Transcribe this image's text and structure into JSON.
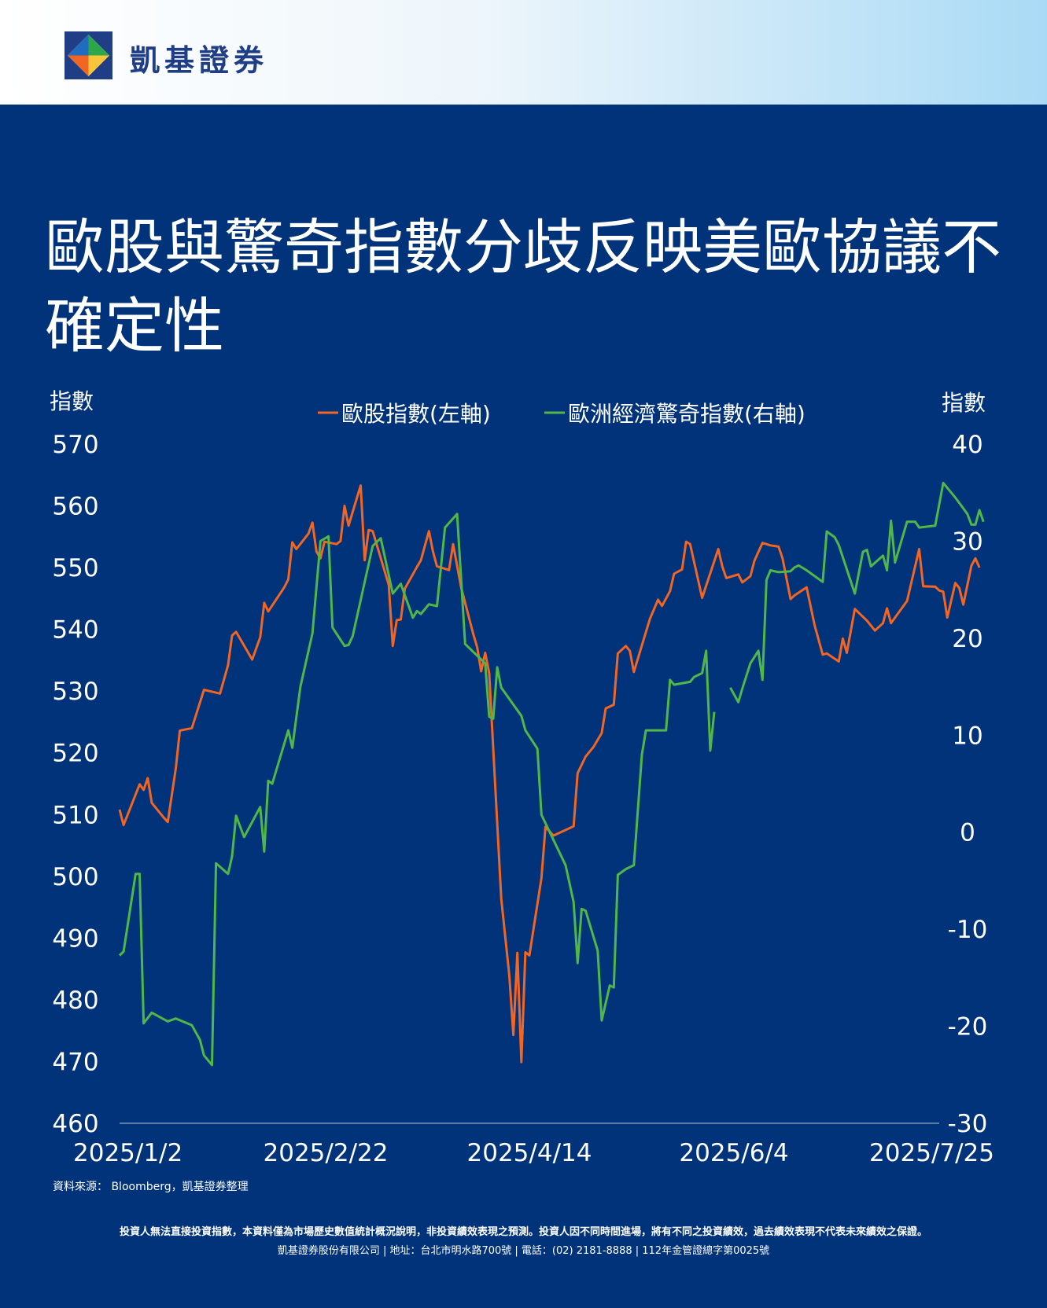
{
  "brand": {
    "name": "凱基證券"
  },
  "title": "歐股與驚奇指數分歧反映美歐協議不確定性",
  "footer": {
    "source": "資料來源： Bloomberg，凱基證券整理",
    "disclaimer": "投資人無法直接投資指數，本資料僅為市場歷史數值統計概況說明，非投資績效表現之預測。投資人因不同時間進場，將有不同之投資績效，過去績效表現不代表未來績效之保證。",
    "company": "凱基證券股份有限公司 | 地址：台北市明水路700號 | 電話：(02) 2181-8888 | 112年金管證總字第0025號"
  },
  "colors": {
    "background": "#00337a",
    "stoxx": "#f26522",
    "surprise": "#4fb848",
    "text": "#ffffff"
  },
  "chart_data": {
    "type": "line",
    "ylabel_left": "指數",
    "ylabel_right": "指數",
    "ylim_left": [
      460,
      570
    ],
    "yticks_left": [
      460,
      470,
      480,
      490,
      500,
      510,
      520,
      530,
      540,
      550,
      560,
      570
    ],
    "ylim_right": [
      -30,
      40
    ],
    "yticks_right": [
      -30,
      -20,
      -10,
      0,
      10,
      20,
      30,
      40
    ],
    "xlim": [
      "2025-01-02",
      "2025-07-25"
    ],
    "xticks": [
      "2025/1/2",
      "2025/2/22",
      "2025/4/14",
      "2025/6/4",
      "2025/7/25"
    ],
    "legend_position": "top-center",
    "grid": false,
    "series": [
      {
        "name": "歐股指數(左軸)",
        "axis": "left",
        "color": "#f26522",
        "points": [
          [
            "2025-01-02",
            510.8
          ],
          [
            "2025-01-03",
            508.3
          ],
          [
            "2025-01-07",
            514.9
          ],
          [
            "2025-01-08",
            514.0
          ],
          [
            "2025-01-09",
            515.9
          ],
          [
            "2025-01-10",
            511.9
          ],
          [
            "2025-01-13",
            509.5
          ],
          [
            "2025-01-14",
            508.8
          ],
          [
            "2025-01-16",
            517.5
          ],
          [
            "2025-01-17",
            523.6
          ],
          [
            "2025-01-20",
            524.0
          ],
          [
            "2025-01-23",
            530.2
          ],
          [
            "2025-01-27",
            529.6
          ],
          [
            "2025-01-29",
            534.2
          ],
          [
            "2025-01-30",
            539.0
          ],
          [
            "2025-01-31",
            539.6
          ],
          [
            "2025-02-04",
            535.1
          ],
          [
            "2025-02-06",
            538.7
          ],
          [
            "2025-02-07",
            544.3
          ],
          [
            "2025-02-08",
            542.9
          ],
          [
            "2025-02-12",
            546.8
          ],
          [
            "2025-02-13",
            548.1
          ],
          [
            "2025-02-14",
            554.1
          ],
          [
            "2025-02-15",
            553.0
          ],
          [
            "2025-02-18",
            555.5
          ],
          [
            "2025-02-19",
            557.3
          ],
          [
            "2025-02-20",
            552.6
          ],
          [
            "2025-02-21",
            551.5
          ],
          [
            "2025-02-22",
            554.2
          ],
          [
            "2025-02-25",
            553.8
          ],
          [
            "2025-02-26",
            554.3
          ],
          [
            "2025-02-27",
            560.0
          ],
          [
            "2025-02-28",
            556.8
          ],
          [
            "2025-03-03",
            563.3
          ],
          [
            "2025-03-04",
            551.2
          ],
          [
            "2025-03-05",
            556.1
          ],
          [
            "2025-03-06",
            555.9
          ],
          [
            "2025-03-10",
            547.2
          ],
          [
            "2025-03-11",
            537.3
          ],
          [
            "2025-03-12",
            541.5
          ],
          [
            "2025-03-13",
            541.6
          ],
          [
            "2025-03-14",
            546.6
          ],
          [
            "2025-03-17",
            550.1
          ],
          [
            "2025-03-18",
            551.2
          ],
          [
            "2025-03-20",
            555.9
          ],
          [
            "2025-03-21",
            552.6
          ],
          [
            "2025-03-22",
            550.2
          ],
          [
            "2025-03-25",
            549.6
          ],
          [
            "2025-03-26",
            553.8
          ],
          [
            "2025-03-28",
            546.8
          ],
          [
            "2025-03-31",
            539.3
          ],
          [
            "2025-04-01",
            537.1
          ],
          [
            "2025-04-02",
            533.2
          ],
          [
            "2025-04-03",
            536.2
          ],
          [
            "2025-04-04",
            532.9
          ],
          [
            "2025-04-07",
            496.4
          ],
          [
            "2025-04-09",
            483.9
          ],
          [
            "2025-04-10",
            474.3
          ],
          [
            "2025-04-11",
            487.6
          ],
          [
            "2025-04-12",
            469.9
          ],
          [
            "2025-04-13",
            487.7
          ],
          [
            "2025-04-14",
            487.2
          ],
          [
            "2025-04-17",
            499.7
          ],
          [
            "2025-04-18",
            508.0
          ],
          [
            "2025-04-20",
            506.6
          ],
          [
            "2025-04-25",
            508.1
          ],
          [
            "2025-04-26",
            516.7
          ],
          [
            "2025-04-28",
            519.4
          ],
          [
            "2025-04-30",
            521.0
          ],
          [
            "2025-05-02",
            523.2
          ],
          [
            "2025-05-03",
            527.2
          ],
          [
            "2025-05-05",
            527.8
          ],
          [
            "2025-05-06",
            536.1
          ],
          [
            "2025-05-08",
            537.3
          ],
          [
            "2025-05-09",
            536.5
          ],
          [
            "2025-05-10",
            533.1
          ],
          [
            "2025-05-14",
            541.7
          ],
          [
            "2025-05-16",
            544.8
          ],
          [
            "2025-05-17",
            543.8
          ],
          [
            "2025-05-19",
            546.2
          ],
          [
            "2025-05-20",
            549.0
          ],
          [
            "2025-05-22",
            549.7
          ],
          [
            "2025-05-23",
            554.2
          ],
          [
            "2025-05-24",
            553.8
          ],
          [
            "2025-05-27",
            545.1
          ],
          [
            "2025-05-31",
            553.0
          ],
          [
            "2025-06-01",
            550.2
          ],
          [
            "2025-06-02",
            548.3
          ],
          [
            "2025-06-05",
            548.9
          ],
          [
            "2025-06-06",
            547.6
          ],
          [
            "2025-06-08",
            548.6
          ],
          [
            "2025-06-09",
            551.1
          ],
          [
            "2025-06-11",
            554.0
          ],
          [
            "2025-06-13",
            553.6
          ],
          [
            "2025-06-15",
            553.4
          ],
          [
            "2025-06-16",
            551.5
          ],
          [
            "2025-06-18",
            544.9
          ],
          [
            "2025-06-19",
            545.5
          ],
          [
            "2025-06-22",
            546.8
          ],
          [
            "2025-06-24",
            540.6
          ],
          [
            "2025-06-26",
            535.9
          ],
          [
            "2025-06-27",
            536.1
          ],
          [
            "2025-06-30",
            534.8
          ],
          [
            "2025-07-01",
            538.5
          ],
          [
            "2025-07-02",
            536.2
          ],
          [
            "2025-07-04",
            543.3
          ],
          [
            "2025-07-07",
            541.4
          ],
          [
            "2025-07-09",
            539.8
          ],
          [
            "2025-07-11",
            541.0
          ],
          [
            "2025-07-12",
            543.4
          ],
          [
            "2025-07-13",
            541.0
          ],
          [
            "2025-07-15",
            542.8
          ],
          [
            "2025-07-17",
            544.6
          ],
          [
            "2025-07-20",
            553.0
          ],
          [
            "2025-07-21",
            547.0
          ],
          [
            "2025-07-24",
            546.9
          ],
          [
            "2025-07-25",
            546.3
          ],
          [
            "2025-07-26",
            546.1
          ],
          [
            "2025-07-27",
            541.9
          ],
          [
            "2025-07-29",
            547.5
          ],
          [
            "2025-07-30",
            546.7
          ],
          [
            "2025-07-31",
            544.0
          ],
          [
            "2025-08-02",
            550.3
          ],
          [
            "2025-08-03",
            551.5
          ],
          [
            "2025-08-04",
            550.0
          ]
        ]
      },
      {
        "name": "歐洲經濟驚奇指數(右軸)",
        "axis": "right",
        "color": "#4fb848",
        "points": [
          [
            "2025-01-02",
            -12.7
          ],
          [
            "2025-01-03",
            -12.3
          ],
          [
            "2025-01-06",
            -4.3
          ],
          [
            "2025-01-07",
            -4.3
          ],
          [
            "2025-01-08",
            -19.7
          ],
          [
            "2025-01-10",
            -18.6
          ],
          [
            "2025-01-14",
            -19.5
          ],
          [
            "2025-01-16",
            -19.2
          ],
          [
            "2025-01-20",
            -19.9
          ],
          [
            "2025-01-22",
            -21.4
          ],
          [
            "2025-01-23",
            -23.0
          ],
          [
            "2025-01-25",
            -24.0
          ],
          [
            "2025-01-26",
            -3.2
          ],
          [
            "2025-01-29",
            -4.3
          ],
          [
            "2025-01-30",
            -2.5
          ],
          [
            "2025-01-31",
            1.7
          ],
          [
            "2025-02-02",
            -0.5
          ],
          [
            "2025-02-06",
            2.6
          ],
          [
            "2025-02-07",
            -2.0
          ],
          [
            "2025-02-08",
            5.3
          ],
          [
            "2025-02-09",
            5.0
          ],
          [
            "2025-02-13",
            10.5
          ],
          [
            "2025-02-14",
            8.7
          ],
          [
            "2025-02-16",
            15.0
          ],
          [
            "2025-02-19",
            20.5
          ],
          [
            "2025-02-21",
            30.0
          ],
          [
            "2025-02-23",
            30.5
          ],
          [
            "2025-02-24",
            21.1
          ],
          [
            "2025-02-27",
            19.2
          ],
          [
            "2025-02-28",
            19.3
          ],
          [
            "2025-03-01",
            20.2
          ],
          [
            "2025-03-06",
            29.5
          ],
          [
            "2025-03-08",
            30.3
          ],
          [
            "2025-03-11",
            24.6
          ],
          [
            "2025-03-13",
            25.6
          ],
          [
            "2025-03-16",
            22.1
          ],
          [
            "2025-03-17",
            22.8
          ],
          [
            "2025-03-18",
            22.5
          ],
          [
            "2025-03-20",
            23.5
          ],
          [
            "2025-03-21",
            23.4
          ],
          [
            "2025-03-22",
            23.3
          ],
          [
            "2025-03-24",
            31.4
          ],
          [
            "2025-03-27",
            32.8
          ],
          [
            "2025-03-29",
            19.4
          ],
          [
            "2025-04-02",
            17.8
          ],
          [
            "2025-04-03",
            17.4
          ],
          [
            "2025-04-04",
            11.9
          ],
          [
            "2025-04-05",
            11.7
          ],
          [
            "2025-04-06",
            17.0
          ],
          [
            "2025-04-07",
            14.9
          ],
          [
            "2025-04-12",
            12.0
          ],
          [
            "2025-04-13",
            10.5
          ],
          [
            "2025-04-16",
            8.6
          ],
          [
            "2025-04-17",
            1.8
          ],
          [
            "2025-04-23",
            -3.4
          ],
          [
            "2025-04-25",
            -7.2
          ],
          [
            "2025-04-26",
            -13.5
          ],
          [
            "2025-04-27",
            -7.9
          ],
          [
            "2025-04-28",
            -8.1
          ],
          [
            "2025-05-01",
            -12.2
          ],
          [
            "2025-05-02",
            -19.4
          ],
          [
            "2025-05-04",
            -15.8
          ],
          [
            "2025-05-05",
            -16.0
          ],
          [
            "2025-05-06",
            -4.4
          ],
          [
            "2025-05-08",
            -3.8
          ],
          [
            "2025-05-10",
            -3.4
          ],
          [
            "2025-05-12",
            8.0
          ],
          [
            "2025-05-13",
            10.5
          ],
          [
            "2025-05-14",
            10.5
          ],
          [
            "2025-05-18",
            10.5
          ],
          [
            "2025-05-19",
            15.7
          ],
          [
            "2025-05-20",
            15.2
          ],
          [
            "2025-05-24",
            15.5
          ],
          [
            "2025-05-25",
            16.0
          ],
          [
            "2025-05-27",
            16.4
          ],
          [
            "2025-05-28",
            18.7
          ],
          [
            "2025-05-29",
            8.4
          ],
          [
            "2025-05-30",
            12.4
          ],
          [
            "2025-06-01",
            null
          ],
          [
            "2025-06-03",
            14.9
          ],
          [
            "2025-06-05",
            13.4
          ],
          [
            "2025-06-06",
            14.8
          ],
          [
            "2025-06-08",
            17.4
          ],
          [
            "2025-06-10",
            18.7
          ],
          [
            "2025-06-11",
            15.7
          ],
          [
            "2025-06-12",
            26.0
          ],
          [
            "2025-06-13",
            27.0
          ],
          [
            "2025-06-15",
            26.8
          ],
          [
            "2025-06-18",
            26.9
          ],
          [
            "2025-06-19",
            27.3
          ],
          [
            "2025-06-20",
            27.5
          ],
          [
            "2025-06-22",
            27.0
          ],
          [
            "2025-06-26",
            25.8
          ],
          [
            "2025-06-27",
            31.0
          ],
          [
            "2025-06-29",
            30.4
          ],
          [
            "2025-06-30",
            29.6
          ],
          [
            "2025-07-04",
            24.6
          ],
          [
            "2025-07-06",
            28.9
          ],
          [
            "2025-07-07",
            29.1
          ],
          [
            "2025-07-08",
            27.4
          ],
          [
            "2025-07-11",
            28.5
          ],
          [
            "2025-07-12",
            27.0
          ],
          [
            "2025-07-13",
            32.1
          ],
          [
            "2025-07-14",
            27.8
          ],
          [
            "2025-07-17",
            32.0
          ],
          [
            "2025-07-19",
            32.0
          ],
          [
            "2025-07-20",
            31.4
          ],
          [
            "2025-07-24",
            31.6
          ],
          [
            "2025-07-26",
            36.0
          ],
          [
            "2025-07-29",
            34.5
          ],
          [
            "2025-08-01",
            32.8
          ],
          [
            "2025-08-02",
            31.7
          ],
          [
            "2025-08-03",
            31.7
          ],
          [
            "2025-08-04",
            33.2
          ],
          [
            "2025-08-05",
            32.0
          ]
        ]
      }
    ]
  }
}
